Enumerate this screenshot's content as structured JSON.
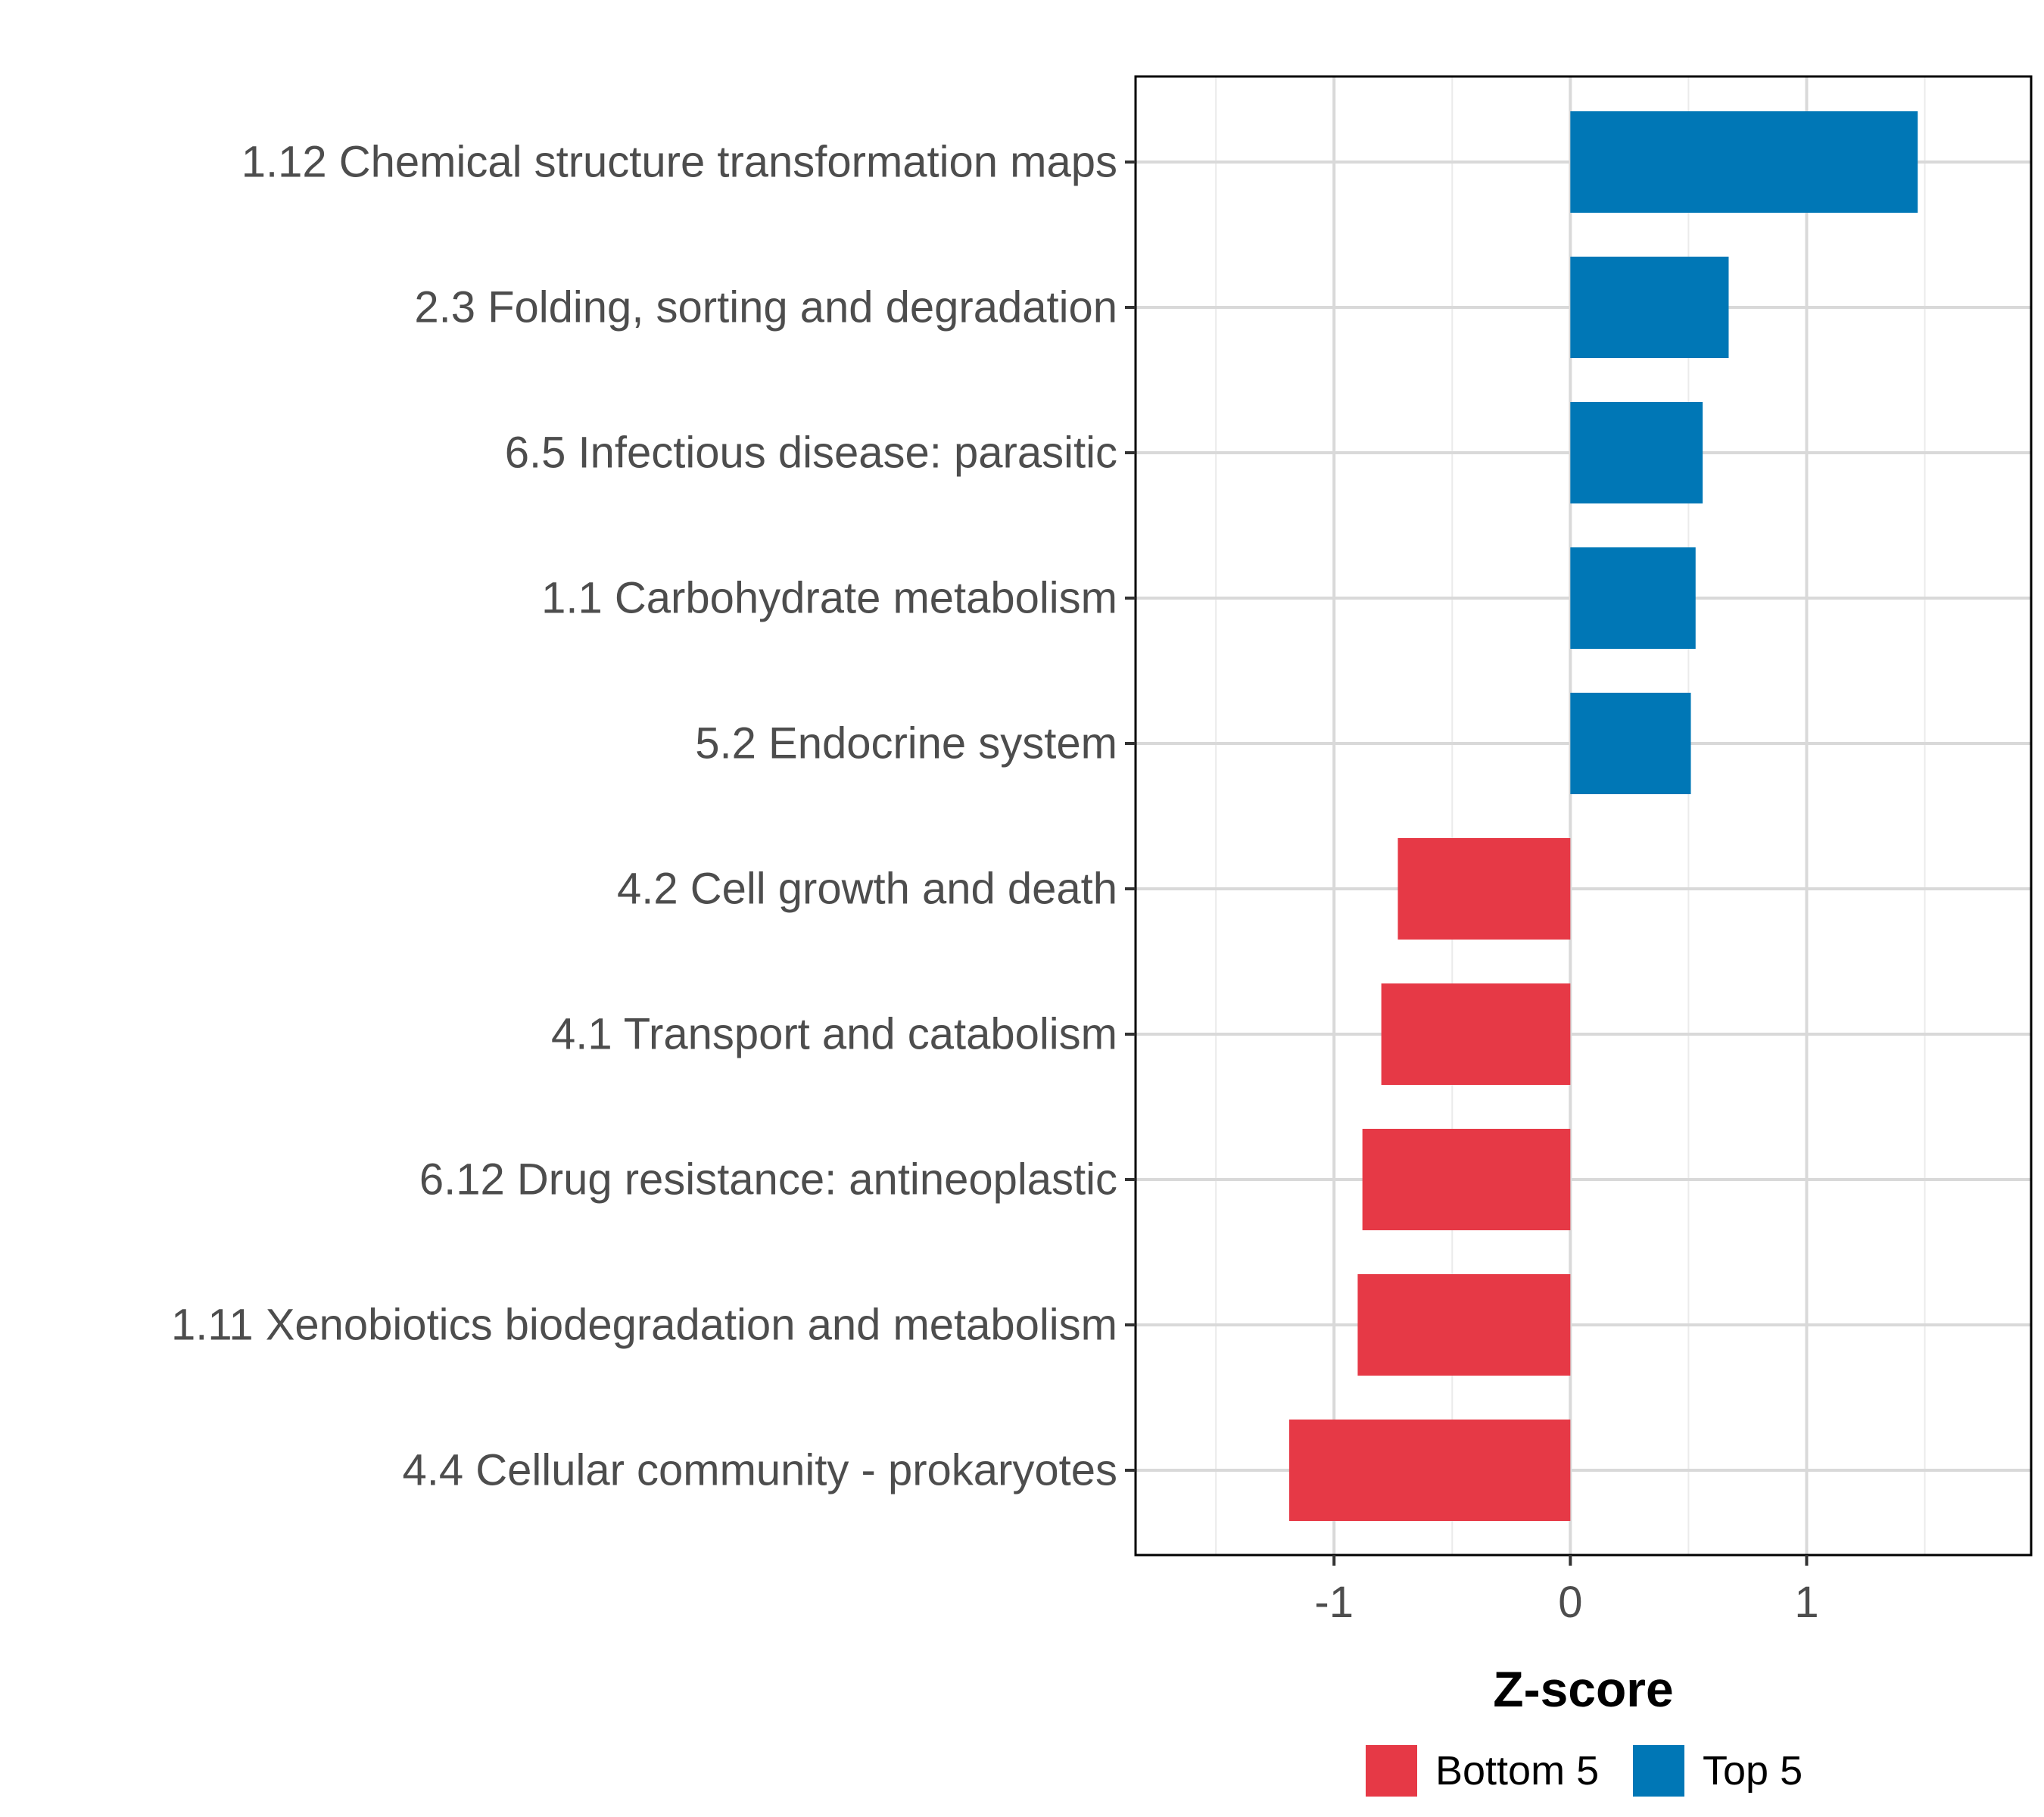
{
  "chart_data": {
    "type": "bar",
    "orientation": "horizontal",
    "xlabel": "Z-score",
    "xlim": [
      -1.84,
      1.95
    ],
    "xticks": [
      -1,
      0,
      1
    ],
    "xtick_labels": [
      "-1",
      "0",
      "1"
    ],
    "grid": true,
    "legend_position": "bottom",
    "colors": {
      "Bottom 5": "#e63946",
      "Top 5": "#0077b6"
    },
    "legend": [
      {
        "label": "Bottom 5",
        "color": "#e63946"
      },
      {
        "label": "Top 5",
        "color": "#0077b6"
      }
    ],
    "bars": [
      {
        "category": "1.12 Chemical structure transformation maps",
        "value": 1.47,
        "group": "Top 5"
      },
      {
        "category": "2.3 Folding, sorting and degradation",
        "value": 0.67,
        "group": "Top 5"
      },
      {
        "category": "6.5 Infectious disease: parasitic",
        "value": 0.56,
        "group": "Top 5"
      },
      {
        "category": "1.1 Carbohydrate metabolism",
        "value": 0.53,
        "group": "Top 5"
      },
      {
        "category": "5.2 Endocrine system",
        "value": 0.51,
        "group": "Top 5"
      },
      {
        "category": "4.2 Cell growth and death",
        "value": -0.73,
        "group": "Bottom 5"
      },
      {
        "category": "4.1 Transport and catabolism",
        "value": -0.8,
        "group": "Bottom 5"
      },
      {
        "category": "6.12 Drug resistance: antineoplastic",
        "value": -0.88,
        "group": "Bottom 5"
      },
      {
        "category": "1.11 Xenobiotics biodegradation and metabolism",
        "value": -0.9,
        "group": "Bottom 5"
      },
      {
        "category": "4.4 Cellular community - prokaryotes",
        "value": -1.19,
        "group": "Bottom 5"
      }
    ]
  }
}
